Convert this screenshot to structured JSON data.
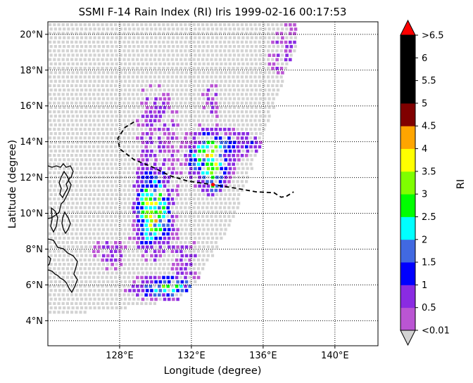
{
  "chart_data": {
    "type": "scatter",
    "title": "SSMI F-14 Rain Index (RI) Iris 1999-02-16 00:17:53",
    "xlabel": "Longitude (degree)",
    "ylabel": "Latitude (degree)",
    "xlim": [
      124.0,
      142.4
    ],
    "ylim": [
      2.6,
      20.7
    ],
    "x_ticks": [
      128,
      132,
      136,
      140
    ],
    "x_tick_labels": [
      "128°E",
      "132°E",
      "136°E",
      "140°E"
    ],
    "y_ticks": [
      4,
      6,
      8,
      10,
      12,
      14,
      16,
      18,
      20
    ],
    "y_tick_labels": [
      "4°N",
      "6°N",
      "8°N",
      "10°N",
      "12°N",
      "14°N",
      "16°N",
      "18°N",
      "20°N"
    ],
    "grid": true,
    "grid_style": "dotted",
    "swath_color": "#d3d3d3",
    "colorbar": {
      "label": "RI",
      "levels": [
        "<0.01",
        "0.5",
        "1",
        "1.5",
        "2",
        "2.5",
        "3",
        "3.5",
        "4",
        "4.5",
        "5",
        "5.5",
        "6",
        ">6.5"
      ],
      "colors": [
        "#ba55d3",
        "#8a2be2",
        "#0000ff",
        "#4169e1",
        "#00ffff",
        "#00ff00",
        "#7fff00",
        "#ffff00",
        "#ffa500",
        "#800000",
        "#000000",
        "#000000",
        "#000000"
      ],
      "extend_min_color": "#d3d3d3",
      "extend_max_color": "#ff0000"
    },
    "track": {
      "style": "dashed",
      "points": [
        [
          128.8,
          15.1
        ],
        [
          128.3,
          14.8
        ],
        [
          127.9,
          14.2
        ],
        [
          128.0,
          13.6
        ],
        [
          128.8,
          13.0
        ],
        [
          129.8,
          12.6
        ],
        [
          130.8,
          12.1
        ],
        [
          131.8,
          11.8
        ],
        [
          133.2,
          11.6
        ],
        [
          134.5,
          11.4
        ],
        [
          135.6,
          11.2
        ],
        [
          136.6,
          11.15
        ],
        [
          137.0,
          10.9
        ],
        [
          137.3,
          10.95
        ],
        [
          137.7,
          11.2
        ]
      ],
      "storm_position": [
        133.2,
        11.6
      ]
    },
    "rain_clusters": [
      {
        "lon": 129.8,
        "lat": 10.2,
        "sx": 0.6,
        "sy": 1.3,
        "peak": 3.2
      },
      {
        "lon": 132.9,
        "lat": 13.2,
        "sx": 0.7,
        "sy": 0.9,
        "peak": 2.9
      },
      {
        "lon": 130.6,
        "lat": 5.9,
        "sx": 1.2,
        "sy": 0.4,
        "peak": 2.2
      },
      {
        "lon": 133.2,
        "lat": 11.8,
        "sx": 0.3,
        "sy": 0.5,
        "peak": 1.4
      },
      {
        "lon": 134.8,
        "lat": 14.0,
        "sx": 0.9,
        "sy": 0.5,
        "peak": 0.9
      },
      {
        "lon": 130.0,
        "lat": 14.8,
        "sx": 0.8,
        "sy": 2.0,
        "peak": 0.7
      },
      {
        "lon": 137.5,
        "lat": 19.0,
        "sx": 1.0,
        "sy": 1.3,
        "peak": 0.6
      },
      {
        "lon": 127.3,
        "lat": 7.8,
        "sx": 0.8,
        "sy": 0.7,
        "peak": 0.6
      },
      {
        "lon": 131.6,
        "lat": 7.6,
        "sx": 0.6,
        "sy": 0.8,
        "peak": 0.6
      },
      {
        "lon": 133.0,
        "lat": 16.5,
        "sx": 0.4,
        "sy": 0.8,
        "peak": 0.55
      }
    ]
  }
}
